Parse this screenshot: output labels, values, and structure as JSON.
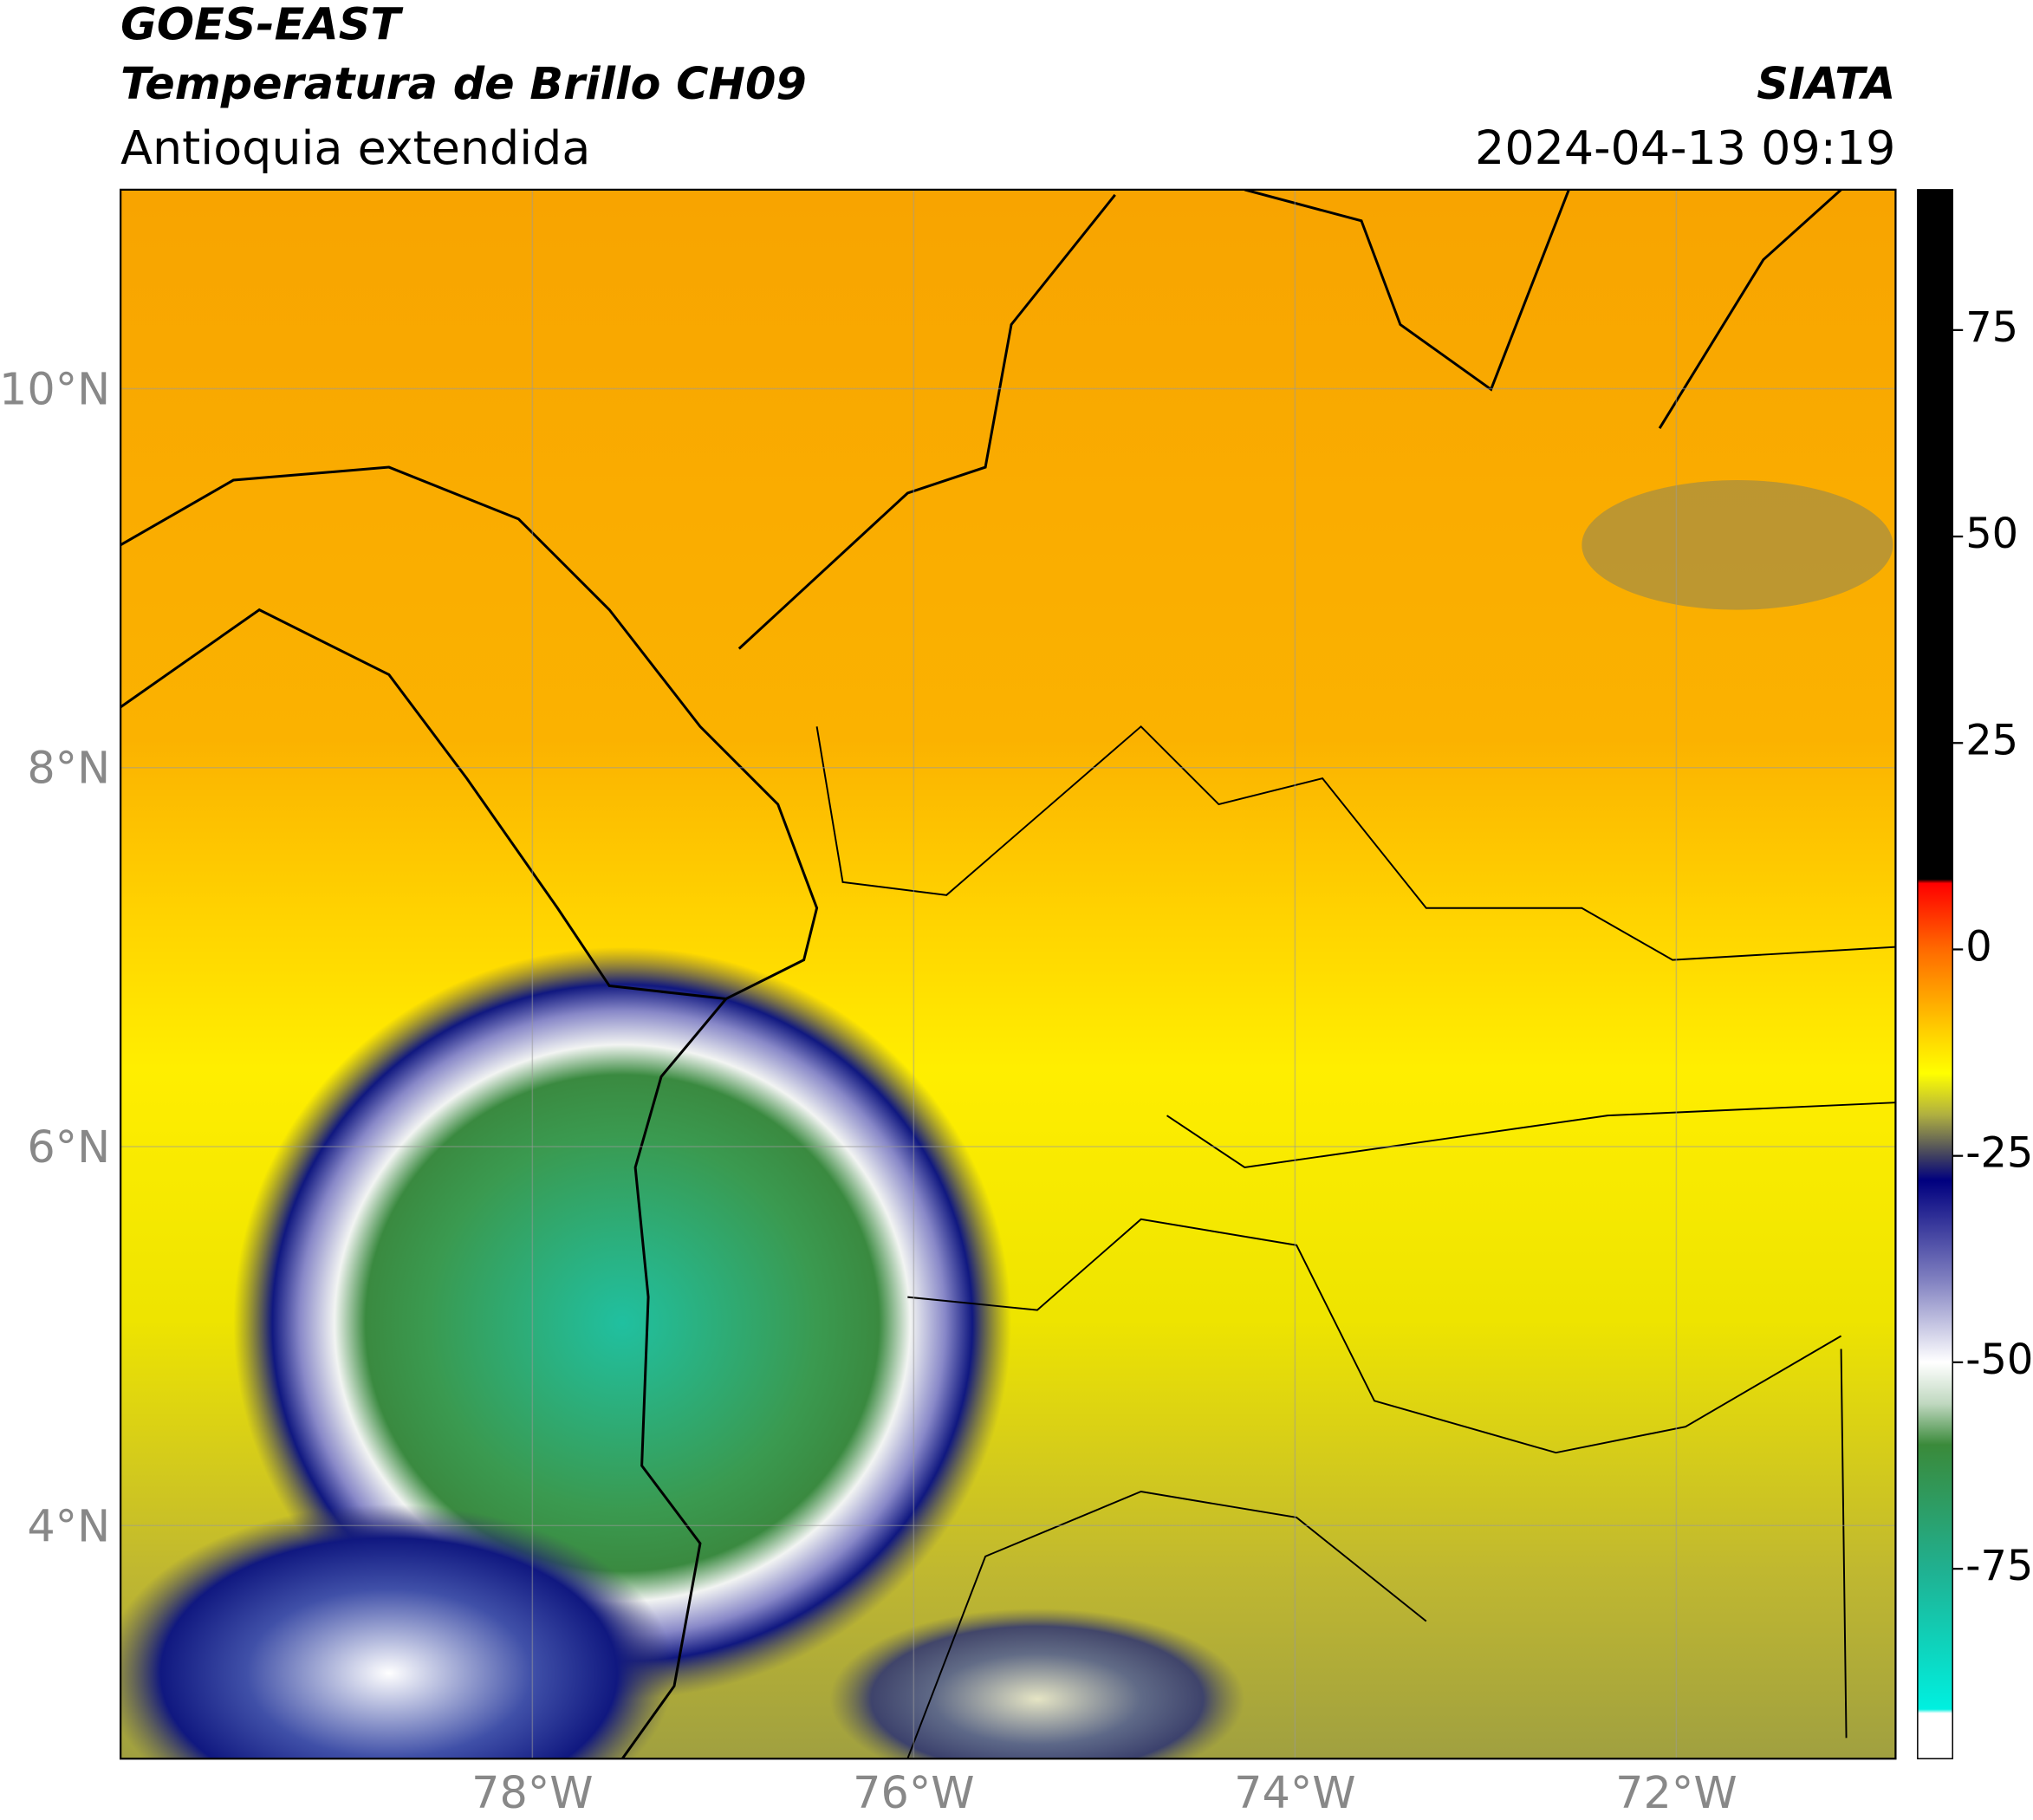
{
  "header": {
    "title": "GOES-EAST",
    "subtitle": "Temperatura de Brillo CH09",
    "region": "Antioquia extendida",
    "agency": "SIATA",
    "datetime": "2024-04-13 09:19"
  },
  "map": {
    "xlim": [
      -80.16,
      -70.85
    ],
    "ylim": [
      2.77,
      11.05
    ],
    "grid": true,
    "xticks": [
      {
        "value": -78,
        "label": "78°W"
      },
      {
        "value": -76,
        "label": "76°W"
      },
      {
        "value": -74,
        "label": "74°W"
      },
      {
        "value": -72,
        "label": "72°W"
      }
    ],
    "yticks": [
      {
        "value": 10,
        "label": "10°N"
      },
      {
        "value": 8,
        "label": "8°N"
      },
      {
        "value": 6,
        "label": "6°N"
      },
      {
        "value": 4,
        "label": "4°N"
      }
    ]
  },
  "colorbar": {
    "lim": [
      -98,
      92
    ],
    "ticks": [
      75,
      50,
      25,
      0,
      -25,
      -50,
      -75
    ],
    "stops": [
      {
        "value": 92,
        "color": "#000000"
      },
      {
        "value": 8.5,
        "color": "#000000"
      },
      {
        "value": 8,
        "color": "#ff0000"
      },
      {
        "value": 0,
        "color": "#ff6a00"
      },
      {
        "value": -10,
        "color": "#ffd000"
      },
      {
        "value": -15,
        "color": "#ffff00"
      },
      {
        "value": -20,
        "color": "#b0b040"
      },
      {
        "value": -25,
        "color": "#404060"
      },
      {
        "value": -28,
        "color": "#00007f"
      },
      {
        "value": -40,
        "color": "#8080c0"
      },
      {
        "value": -50,
        "color": "#ffffff"
      },
      {
        "value": -55,
        "color": "#c0d8c0"
      },
      {
        "value": -60,
        "color": "#3a8a3a"
      },
      {
        "value": -75,
        "color": "#20b090"
      },
      {
        "value": -92,
        "color": "#00f0e0"
      },
      {
        "value": -92.5,
        "color": "#ffffff"
      },
      {
        "value": -98,
        "color": "#ffffff"
      }
    ]
  }
}
